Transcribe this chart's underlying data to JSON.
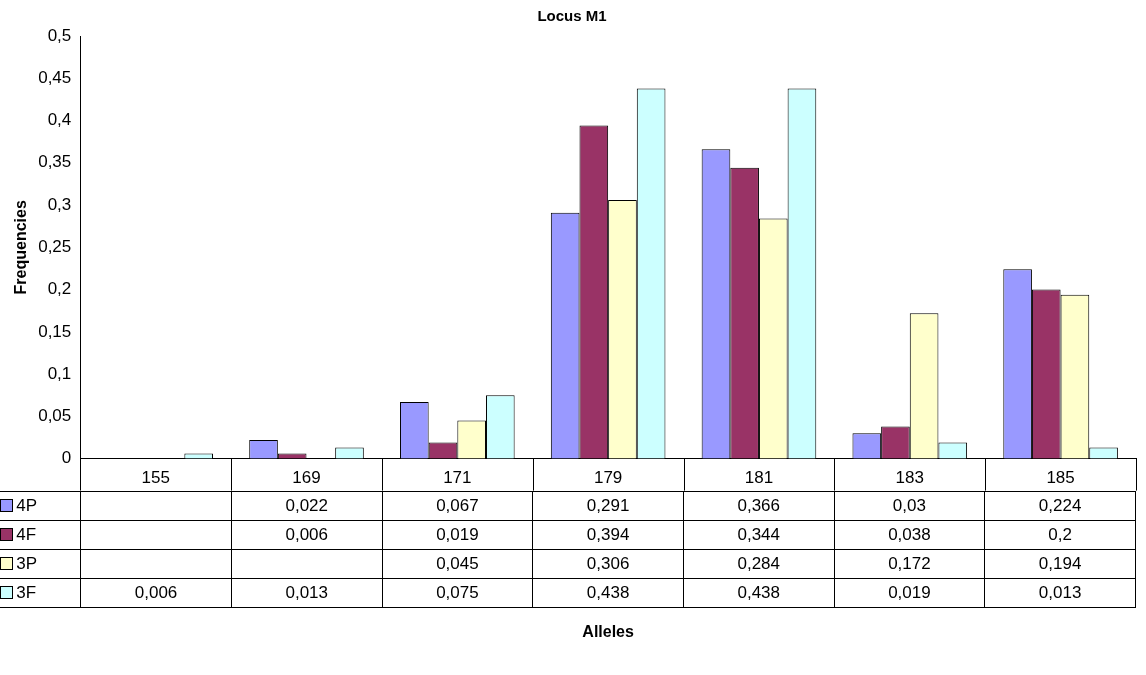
{
  "chart_data": {
    "type": "bar",
    "title": "Locus M1",
    "annotations": [
      "Alleles"
    ],
    "ylabel": "Frequencies",
    "categories": [
      "155",
      "169",
      "171",
      "179",
      "181",
      "183",
      "185"
    ],
    "series": [
      {
        "name": "4P",
        "color": "#9999ff",
        "values": [
          null,
          0.022,
          0.067,
          0.291,
          0.366,
          0.03,
          0.224
        ],
        "value_labels": [
          null,
          "0,022",
          "0,067",
          "0,291",
          "0,366",
          "0,03",
          "0,224"
        ]
      },
      {
        "name": "4F",
        "color": "#993366",
        "values": [
          null,
          0.006,
          0.019,
          0.394,
          0.344,
          0.038,
          0.2
        ],
        "value_labels": [
          null,
          "0,006",
          "0,019",
          "0,394",
          "0,344",
          "0,038",
          "0,2"
        ]
      },
      {
        "name": "3P",
        "color": "#ffffcc",
        "values": [
          null,
          null,
          0.045,
          0.306,
          0.284,
          0.172,
          0.194
        ],
        "value_labels": [
          null,
          null,
          "0,045",
          "0,306",
          "0,284",
          "0,172",
          "0,194"
        ]
      },
      {
        "name": "3F",
        "color": "#ccffff",
        "values": [
          0.006,
          0.013,
          0.075,
          0.438,
          0.438,
          0.019,
          0.013
        ],
        "value_labels": [
          "0,006",
          "0,013",
          "0,075",
          "0,438",
          "0,438",
          "0,019",
          "0,013"
        ]
      }
    ],
    "ylim": [
      0,
      0.5
    ],
    "yticks": [
      {
        "value": 0,
        "label": "0"
      },
      {
        "value": 0.05,
        "label": "0,05"
      },
      {
        "value": 0.1,
        "label": "0,1"
      },
      {
        "value": 0.15,
        "label": "0,15"
      },
      {
        "value": 0.2,
        "label": "0,2"
      },
      {
        "value": 0.25,
        "label": "0,25"
      },
      {
        "value": 0.3,
        "label": "0,3"
      },
      {
        "value": 0.35,
        "label": "0,35"
      },
      {
        "value": 0.4,
        "label": "0,4"
      },
      {
        "value": 0.45,
        "label": "0,45"
      },
      {
        "value": 0.5,
        "label": "0,5"
      }
    ],
    "legend": "bottom left"
  }
}
